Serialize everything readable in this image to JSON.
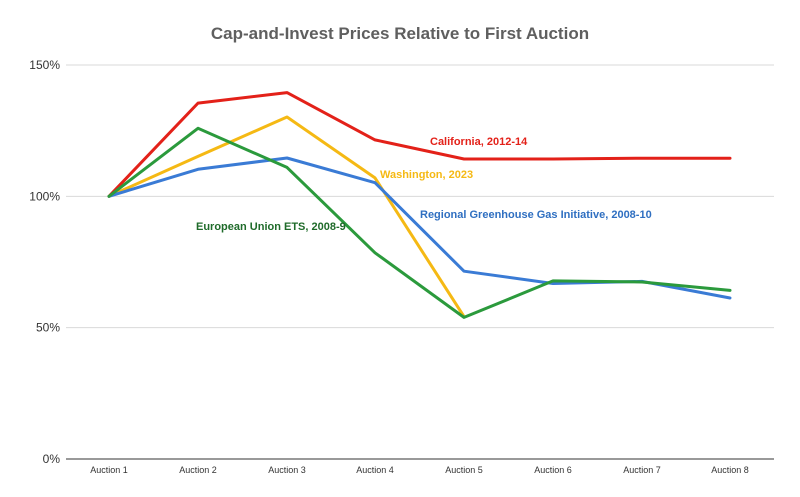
{
  "chart_data": {
    "type": "line",
    "title": "Cap-and-Invest Prices Relative to First Auction",
    "categories": [
      "Auction 1",
      "Auction 2",
      "Auction 3",
      "Auction 4",
      "Auction 5",
      "Auction 6",
      "Auction 7",
      "Auction 8"
    ],
    "y_ticks": [
      "0%",
      "50%",
      "100%",
      "150%"
    ],
    "ylim": [
      0,
      150
    ],
    "grid": true,
    "series": [
      {
        "name": "California, 2012-14",
        "color": "#e32119",
        "values": [
          100,
          135.5,
          139.5,
          121.5,
          114.2,
          114.2,
          114.5,
          114.5
        ]
      },
      {
        "name": "Washington, 2023",
        "color": "#f5b914",
        "values": [
          100,
          115.2,
          130.2,
          107.0,
          54.2,
          null,
          null,
          null
        ]
      },
      {
        "name": "Regional Greenhouse Gas Initiative, 2008-10",
        "color": "#3a7bd5",
        "values": [
          100,
          110.3,
          114.6,
          105.2,
          71.5,
          66.8,
          67.6,
          61.3
        ]
      },
      {
        "name": "European Union ETS, 2008-9",
        "color": "#2b9a3c",
        "values": [
          100,
          125.9,
          111.0,
          78.5,
          53.9,
          67.8,
          67.4,
          64.2
        ]
      }
    ]
  }
}
